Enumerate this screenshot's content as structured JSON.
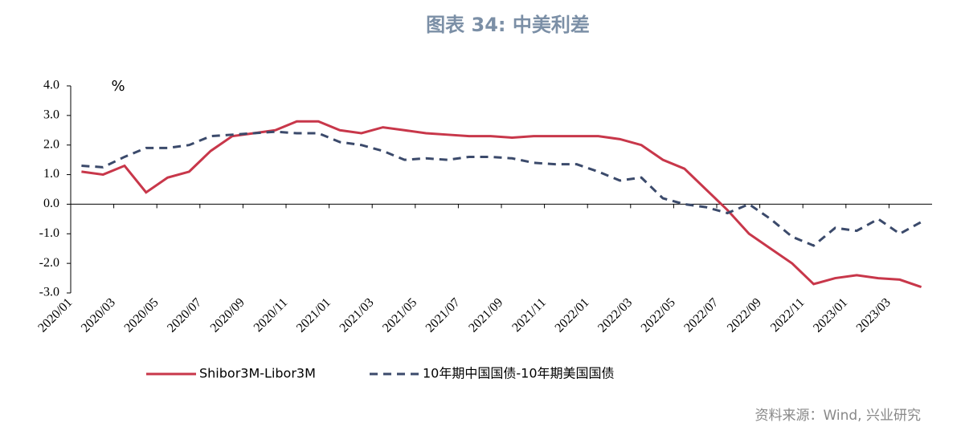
{
  "chart_data": {
    "type": "line",
    "title": "图表 34: 中美利差",
    "ylabel": "%",
    "source": "资料来源：Wind, 兴业研究",
    "categories": [
      "2020/01",
      null,
      "2020/03",
      null,
      "2020/05",
      null,
      "2020/07",
      null,
      "2020/09",
      null,
      "2020/11",
      null,
      "2021/01",
      null,
      "2021/03",
      null,
      "2021/05",
      null,
      "2021/07",
      null,
      "2021/09",
      null,
      "2021/11",
      null,
      "2022/01",
      null,
      "2022/03",
      null,
      "2022/05",
      null,
      "2022/07",
      null,
      "2022/09",
      null,
      "2022/11",
      null,
      "2023/01",
      null,
      "2023/03",
      null
    ],
    "series": [
      {
        "name": "Shibor3M-Libor3M",
        "color": "#c8374a",
        "dash": false,
        "values": [
          1.1,
          1.0,
          1.3,
          0.4,
          0.9,
          1.1,
          1.8,
          2.3,
          2.4,
          2.5,
          2.8,
          2.8,
          2.5,
          2.4,
          2.6,
          2.5,
          2.4,
          2.35,
          2.3,
          2.3,
          2.25,
          2.3,
          2.3,
          2.3,
          2.3,
          2.2,
          2.0,
          1.5,
          1.2,
          0.5,
          -0.2,
          -1.0,
          -1.5,
          -2.0,
          -2.7,
          -2.5,
          -2.4,
          -2.5,
          -2.55,
          -2.8
        ]
      },
      {
        "name": "10年期中国国债-10年期美国国债",
        "color": "#3b4a6b",
        "dash": true,
        "values": [
          1.3,
          1.25,
          1.6,
          1.9,
          1.9,
          2.0,
          2.3,
          2.35,
          2.4,
          2.45,
          2.4,
          2.4,
          2.1,
          2.0,
          1.8,
          1.5,
          1.55,
          1.5,
          1.6,
          1.6,
          1.55,
          1.4,
          1.35,
          1.35,
          1.1,
          0.8,
          0.9,
          0.2,
          0.0,
          -0.1,
          -0.3,
          0.0,
          -0.5,
          -1.1,
          -1.4,
          -0.8,
          -0.9,
          -0.5,
          -1.0,
          -0.6
        ]
      }
    ],
    "ylim": [
      -3,
      4
    ],
    "yticks": [
      {
        "value": 4,
        "label": "4.0"
      },
      {
        "value": 3,
        "label": "3.0"
      },
      {
        "value": 2,
        "label": "2.0"
      },
      {
        "value": 1,
        "label": "1.0"
      },
      {
        "value": 0,
        "label": "0.0"
      },
      {
        "value": -1,
        "label": "-1.0"
      },
      {
        "value": -2,
        "label": "-2.0"
      },
      {
        "value": -3,
        "label": "-3.0"
      }
    ],
    "grid": false,
    "legend": "bottom"
  }
}
